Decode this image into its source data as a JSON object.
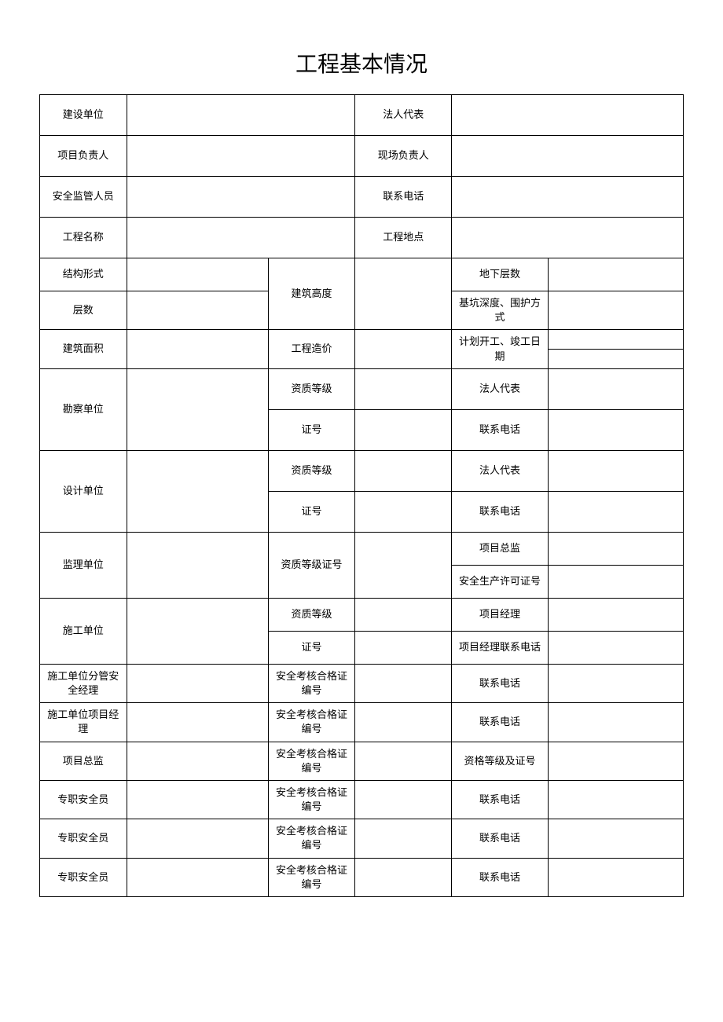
{
  "title": "工程基本情况",
  "labels": {
    "construction_unit": "建设单位",
    "legal_rep": "法人代表",
    "project_leader": "项目负责人",
    "site_leader": "现场负责人",
    "safety_supervisor": "安全监管人员",
    "contact_phone": "联系电话",
    "project_name": "工程名称",
    "project_location": "工程地点",
    "structure_type": "结构形式",
    "building_height": "建筑高度",
    "underground_floors": "地下层数",
    "floors": "层数",
    "pit_depth": "基坑深度、围护方式",
    "building_area": "建筑面积",
    "project_cost": "工程造价",
    "plan_dates": "计划开工、竣工日期",
    "survey_unit": "勘察单位",
    "qualification_level": "资质等级",
    "cert_no": "证号",
    "design_unit": "设计单位",
    "supervision_unit": "监理单位",
    "qual_level_cert": "资质等级证号",
    "project_director": "项目总监",
    "safety_prod_license": "安全生产许可证号",
    "contractor": "施工单位",
    "project_manager": "项目经理",
    "pm_phone": "项目经理联系电话",
    "contractor_safety_mgr": "施工单位分管安全经理",
    "safety_cert_no": "安全考核合格证编号",
    "contractor_pm": "施工单位项目经理",
    "project_director2": "项目总监",
    "qual_level_cert_no": "资格等级及证号",
    "safety_officer": "专职安全员"
  }
}
